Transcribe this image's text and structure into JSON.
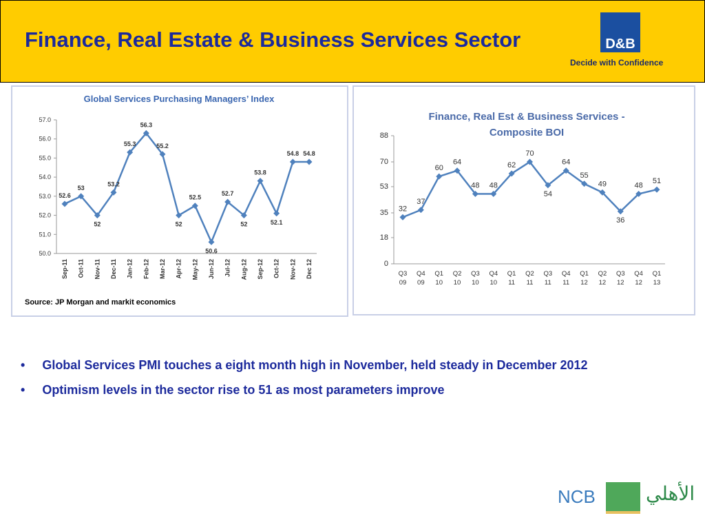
{
  "header": {
    "title": "Finance, Real Estate & Business Services Sector",
    "logo": "D&B",
    "tagline": "Decide with Confidence"
  },
  "chart_data": [
    {
      "type": "line",
      "title": "Global Services Purchasing Managers’ Index",
      "source": "Source: JP Morgan and markit economics",
      "categories": [
        "Sep-11",
        "Oct-11",
        "Nov-11",
        "Dec-11",
        "Jan-12",
        "Feb-12",
        "Mar-12",
        "Apr-12",
        "May-12",
        "Jun-12",
        "Jul-12",
        "Aug-12",
        "Sep-12",
        "Oct-12",
        "Nov-12",
        "Dec 12"
      ],
      "values": [
        52.6,
        53,
        52,
        53.2,
        55.3,
        56.3,
        55.2,
        52,
        52.5,
        50.6,
        52.7,
        52,
        53.8,
        52.1,
        54.8,
        54.8
      ],
      "color": "#4f81bd",
      "ylim": [
        50,
        57
      ],
      "yticks": [
        {
          "value": 50,
          "label": "50.0"
        },
        {
          "value": 51,
          "label": "51.0"
        },
        {
          "value": 52,
          "label": "52.0"
        },
        {
          "value": 53,
          "label": "53.0"
        },
        {
          "value": 54,
          "label": "54.0"
        },
        {
          "value": 55,
          "label": "55.0"
        },
        {
          "value": 56,
          "label": "56.0"
        },
        {
          "value": 57,
          "label": "57.0"
        }
      ]
    },
    {
      "type": "line",
      "title": "Finance, Real Est & Business Services - Composite BOI",
      "categories": [
        "Q3 09",
        "Q4 09",
        "Q1 10",
        "Q2 10",
        "Q3 10",
        "Q4 10",
        "Q1 11",
        "Q2 11",
        "Q3 11",
        "Q4 11",
        "Q1 12",
        "Q2 12",
        "Q3 12",
        "Q4 12",
        "Q1 13"
      ],
      "values": [
        32,
        37,
        60,
        64,
        48,
        48,
        62,
        70,
        54,
        64,
        55,
        49,
        36,
        48,
        51
      ],
      "color": "#4f81bd",
      "ylim": [
        0,
        88
      ],
      "yticks": [
        0,
        18,
        35,
        53,
        70,
        88
      ]
    }
  ],
  "bullets": [
    "Global Services PMI touches a eight month high in November, held steady in December 2012",
    "Optimism levels in the sector rise to 51 as most parameters improve"
  ],
  "footer": {
    "logo": "NCB",
    "logo_arabic": "الأهلي"
  }
}
